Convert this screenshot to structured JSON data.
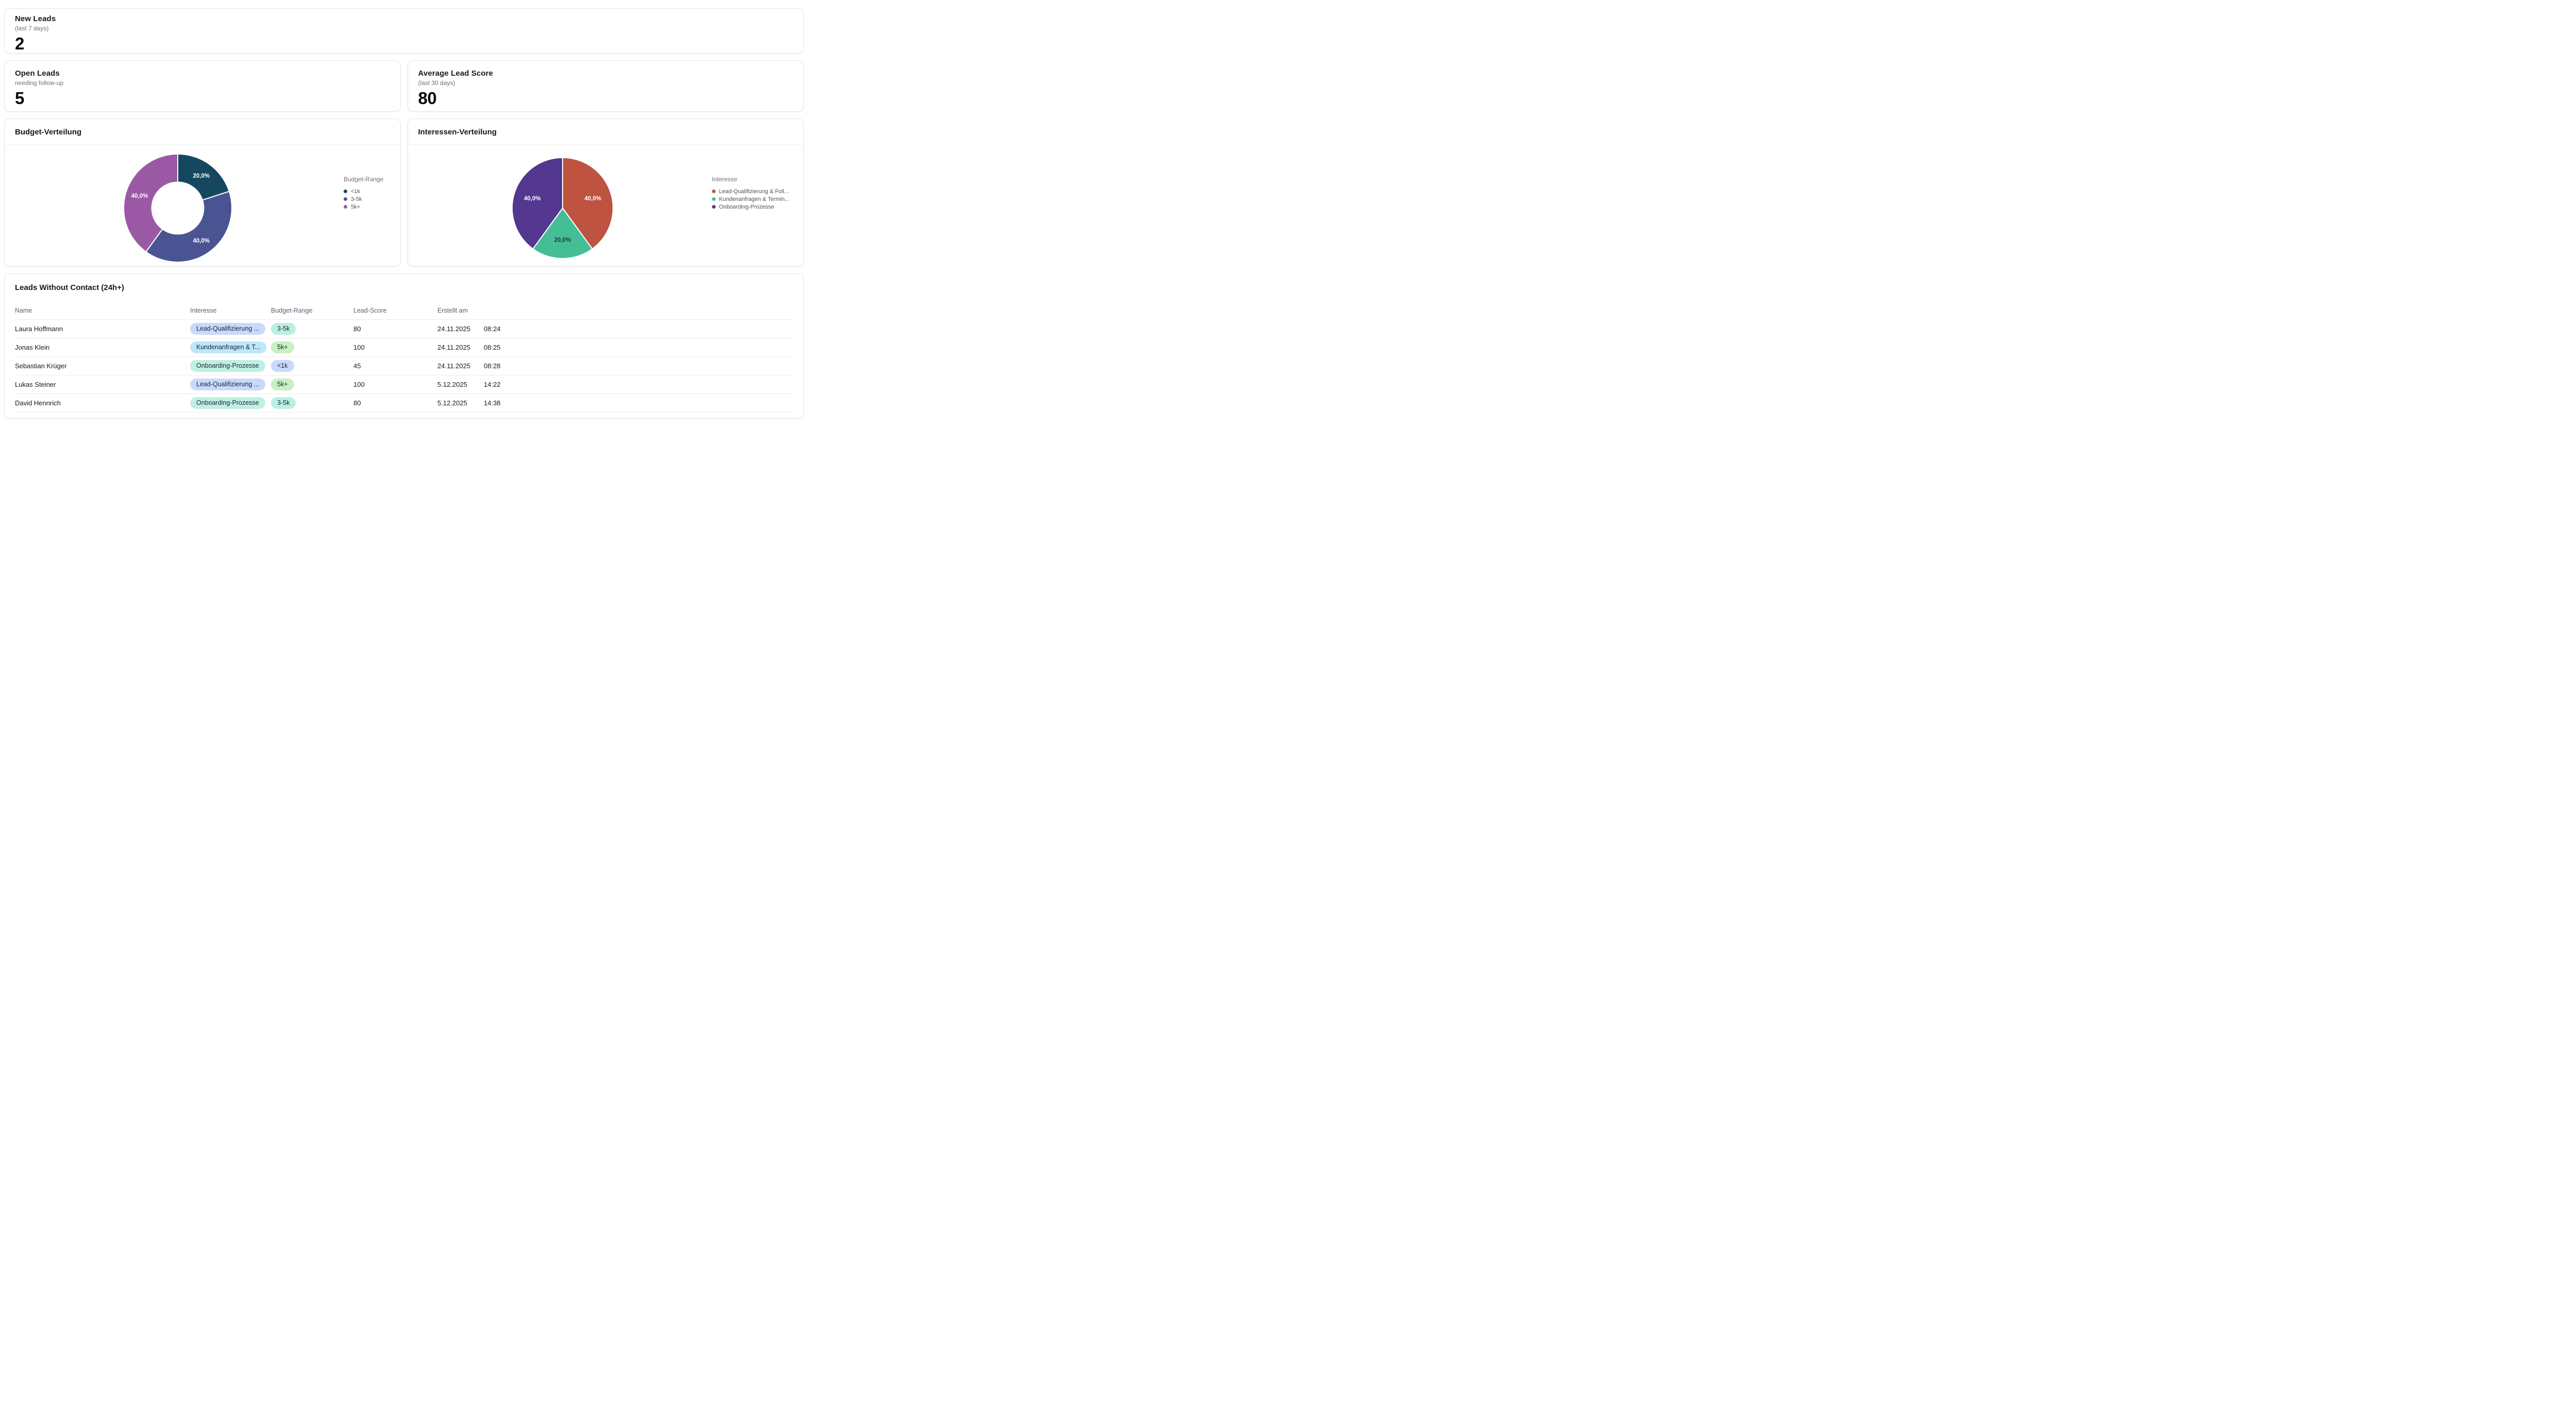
{
  "kpis": [
    {
      "title": "New Leads",
      "subtitle": "(last 7 days)",
      "value": "2"
    },
    {
      "title": "Open Leads",
      "subtitle": "needing follow-up",
      "value": "5"
    },
    {
      "title": "Average Lead Score",
      "subtitle": "(last 30 days)",
      "value": "80"
    }
  ],
  "chart_data": [
    {
      "type": "pie",
      "subtype": "donut",
      "title": "Budget-Verteilung",
      "legend_title": "Budget-Range",
      "legend_position": "right",
      "categories": [
        "<1k",
        "3-5k",
        "5k+"
      ],
      "values": [
        20,
        40,
        40
      ],
      "slice_labels": [
        "20,0%",
        "40,0%",
        "40,0%"
      ],
      "colors": [
        "#15485f",
        "#4b5492",
        "#9b59a5"
      ],
      "slice_label_colors": [
        "#ffffff",
        "#ffffff",
        "#ffffff"
      ],
      "inner_ratio": 0.48
    },
    {
      "type": "pie",
      "subtype": "pie",
      "title": "Interessen-Verteilung",
      "legend_title": "Interesse",
      "legend_position": "right",
      "categories": [
        "Lead-Qualifizierung & Foll...",
        "Kundenanfragen & Termin...",
        "Onboarding-Prozesse"
      ],
      "values": [
        40,
        20,
        40
      ],
      "slice_labels": [
        "40,0%",
        "20,0%",
        "40,0%"
      ],
      "colors": [
        "#bd5340",
        "#44bf95",
        "#54378f"
      ],
      "slice_label_colors": [
        "#ffffff",
        "#283041",
        "#ffffff"
      ],
      "inner_ratio": 0
    }
  ],
  "table": {
    "title": "Leads Without Contact (24h+)",
    "columns": [
      "Name",
      "Interesse",
      "Budget-Range",
      "Lead-Score",
      "Erstellt am",
      ""
    ],
    "rows": [
      {
        "name": "Laura Hoffmann",
        "interesse": "Lead-Qualifizierung ...",
        "interesse_color": "#c9d9fb",
        "budget": "3-5k",
        "budget_color": "#baf0e2",
        "score": "80",
        "date": "24.11.2025",
        "time": "08:24"
      },
      {
        "name": "Jonas Klein",
        "interesse": "Kundenanfragen & T...",
        "interesse_color": "#bde7fb",
        "budget": "5k+",
        "budget_color": "#c7f0c4",
        "score": "100",
        "date": "24.11.2025",
        "time": "08:25"
      },
      {
        "name": "Sebastian Krüger",
        "interesse": "Onboarding-Prozesse",
        "interesse_color": "#bff0e2",
        "budget": "<1k",
        "budget_color": "#c9d9fb",
        "score": "45",
        "date": "24.11.2025",
        "time": "08:28"
      },
      {
        "name": "Lukas Steiner",
        "interesse": "Lead-Qualifizierung ...",
        "interesse_color": "#c9d9fb",
        "budget": "5k+",
        "budget_color": "#c7f0c4",
        "score": "100",
        "date": "5.12.2025",
        "time": "14:22"
      },
      {
        "name": "David Hennrich",
        "interesse": "Onboarding-Prozesse",
        "interesse_color": "#bff0e2",
        "budget": "3-5k",
        "budget_color": "#baf0e2",
        "score": "80",
        "date": "5.12.2025",
        "time": "14:38"
      }
    ]
  }
}
